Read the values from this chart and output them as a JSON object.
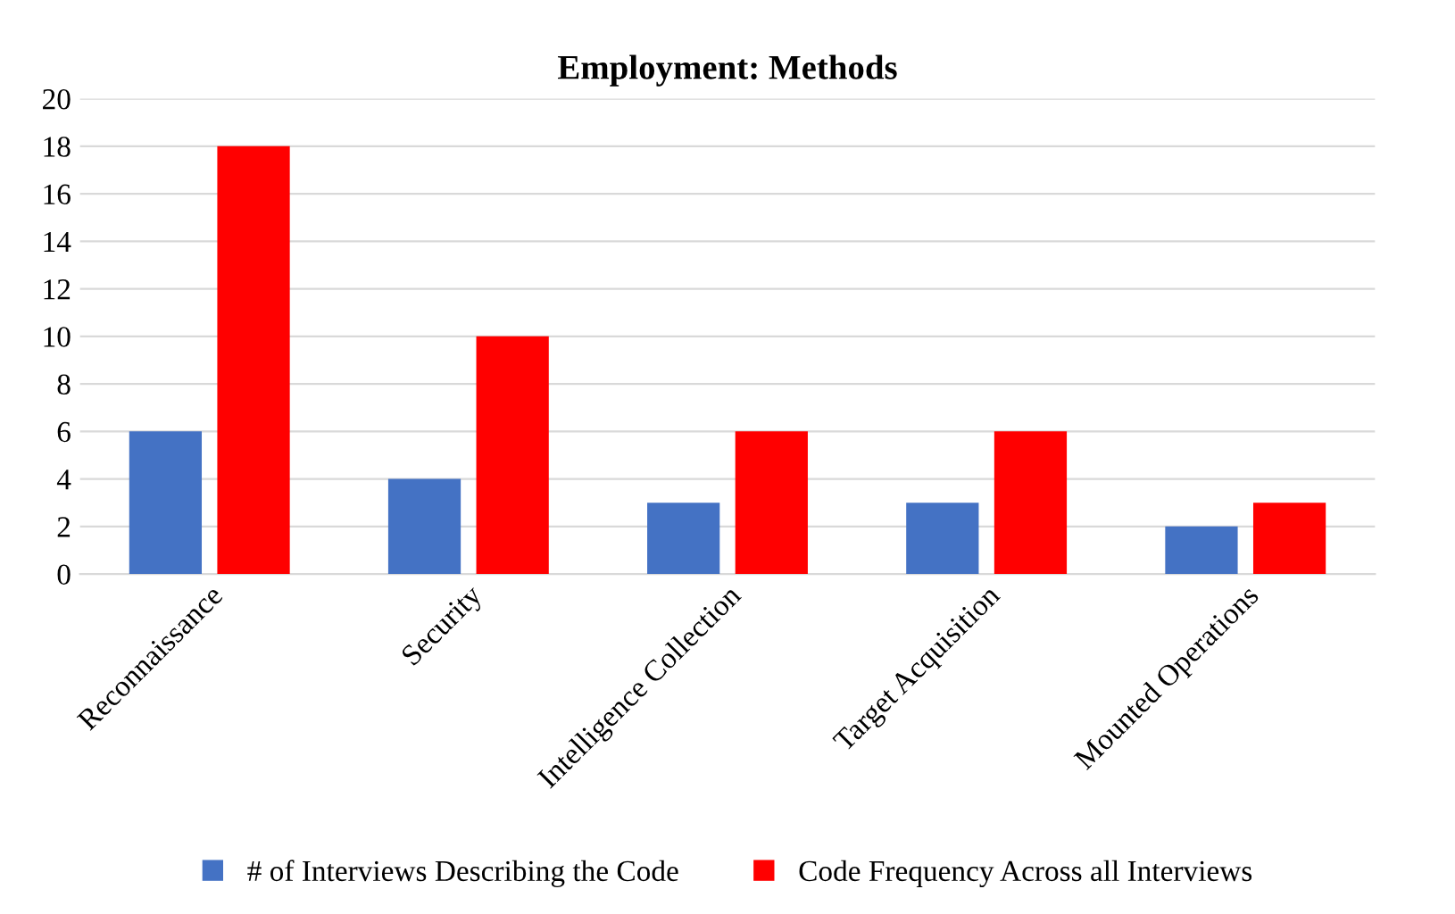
{
  "chart_data": {
    "type": "bar",
    "title": "Employment: Methods",
    "categories": [
      "Reconnaissance",
      "Security",
      "Intelligence Collection",
      "Target Acquisition",
      "Mounted Operations"
    ],
    "series": [
      {
        "name": "# of Interviews Describing the Code",
        "color": "#4472c4",
        "values": [
          6,
          4,
          3,
          3,
          2
        ]
      },
      {
        "name": "Code Frequency Across all Interviews",
        "color": "#ff0000",
        "values": [
          18,
          10,
          6,
          6,
          3
        ]
      }
    ],
    "ylim": [
      0,
      20
    ],
    "yticks": [
      0,
      2,
      4,
      6,
      8,
      10,
      12,
      14,
      16,
      18,
      20
    ],
    "grid": "y",
    "legend": "bottom"
  }
}
